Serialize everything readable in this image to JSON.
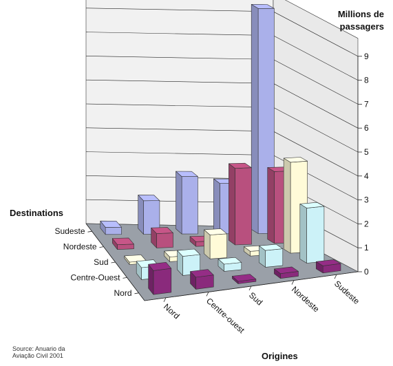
{
  "chart_data": {
    "type": "bar3d",
    "ylabel": "Millions de passagers",
    "ylim": [
      0,
      9
    ],
    "yticks": [
      "0",
      "1",
      "2",
      "3",
      "4",
      "5",
      "6",
      "7",
      "8",
      "9"
    ],
    "x_title": "Origines",
    "z_title": "Destinations",
    "origins": [
      "Nord",
      "Centre-ouest",
      "Sud",
      "Nordeste",
      "Sudeste"
    ],
    "destinations": [
      "Nord",
      "Centre-Ouest",
      "Sud",
      "Nordeste",
      "Sudeste"
    ],
    "series": [
      {
        "destination": "Sudeste",
        "color": "#aab0ea",
        "values": [
          0.3,
          1.4,
          2.4,
          2.1,
          9.4
        ]
      },
      {
        "destination": "Nordeste",
        "color": "#b8507e",
        "values": [
          0.2,
          0.6,
          0.2,
          3.2,
          3.0
        ]
      },
      {
        "destination": "Sud",
        "color": "#fffbd8",
        "values": [
          0.1,
          0.2,
          1.0,
          0.2,
          3.8
        ]
      },
      {
        "destination": "Centre-Ouest",
        "color": "#ccf2f8",
        "values": [
          0.5,
          0.8,
          0.3,
          0.7,
          2.3
        ]
      },
      {
        "destination": "Nord",
        "color": "#8a2a7c",
        "values": [
          1.0,
          0.5,
          0.1,
          0.2,
          0.3
        ]
      }
    ],
    "grid": true
  },
  "source": "Source: Anuario da Aviação Civil 2001",
  "source_lines": [
    "Source: Anuario da",
    "Aviação Civil 2001"
  ]
}
